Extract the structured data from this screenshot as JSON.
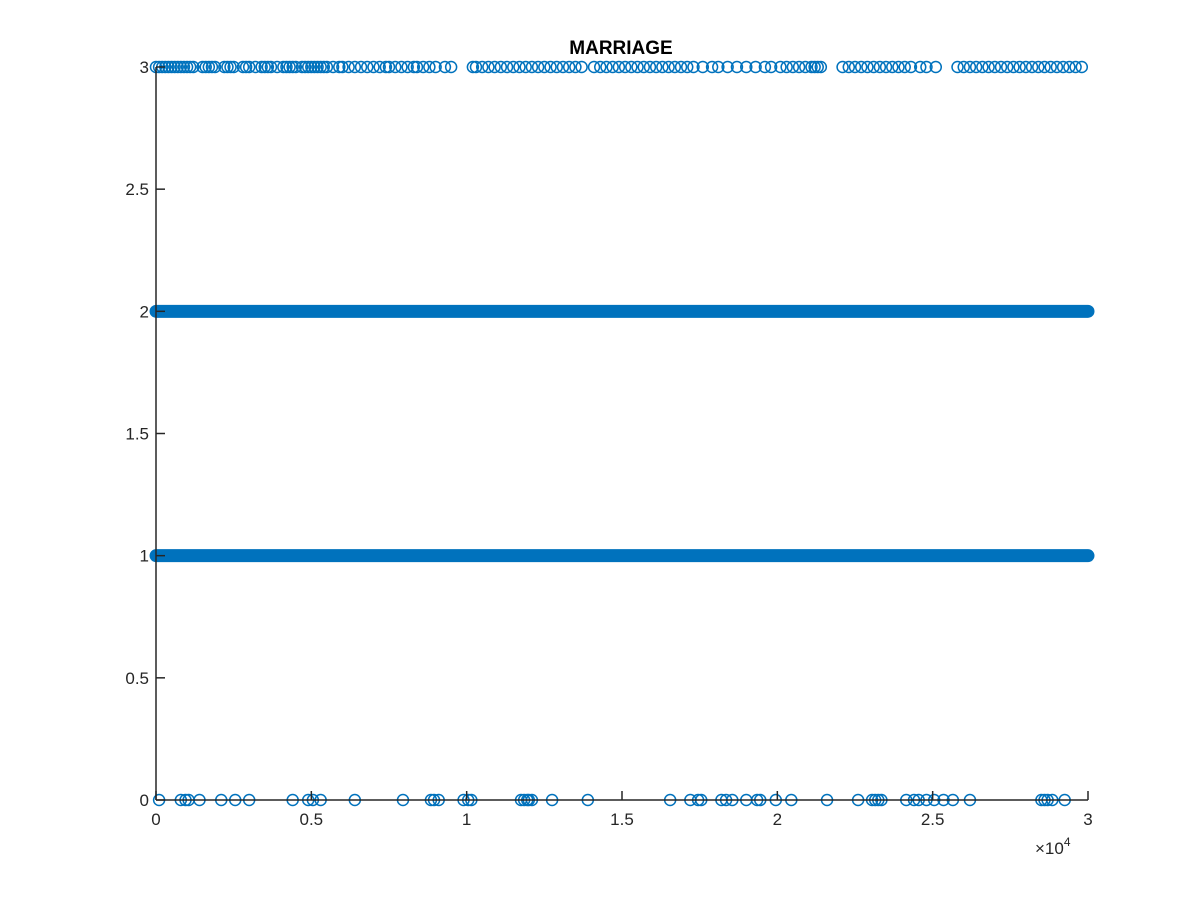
{
  "chart_data": {
    "type": "scatter",
    "title": "MARRIAGE",
    "xlabel": "",
    "ylabel": "",
    "xlim": [
      0,
      30000
    ],
    "ylim": [
      0,
      3
    ],
    "x_tick_labels": [
      "0",
      "0.5",
      "1",
      "1.5",
      "2",
      "2.5",
      "3"
    ],
    "x_tick_values": [
      0,
      5000,
      10000,
      15000,
      20000,
      25000,
      30000
    ],
    "x_exponent_prefix": "×10",
    "x_exponent_power": "4",
    "y_tick_labels": [
      "0",
      "0.5",
      "1",
      "1.5",
      "2",
      "2.5",
      "3"
    ],
    "y_tick_values": [
      0,
      0.5,
      1,
      1.5,
      2,
      2.5,
      3
    ],
    "marker": "open-circle",
    "series_color": "#0072BD",
    "dense_levels": [
      {
        "y": 1,
        "x_range": [
          1,
          30000
        ]
      },
      {
        "y": 2,
        "x_range": [
          1,
          30000
        ]
      }
    ],
    "sparse_points": {
      "y0_x": [
        100,
        800,
        950,
        1050,
        1400,
        2100,
        2550,
        3000,
        4400,
        4900,
        5050,
        5300,
        6400,
        7950,
        8850,
        8950,
        9100,
        9900,
        10050,
        10150,
        11750,
        11850,
        11950,
        12000,
        12100,
        12750,
        13900,
        16550,
        17200,
        17450,
        17550,
        18200,
        18350,
        18550,
        19000,
        19350,
        19450,
        19950,
        20450,
        21600,
        22600,
        23050,
        23150,
        23250,
        23350,
        24150,
        24400,
        24550,
        24800,
        25050,
        25350,
        25650,
        26200,
        28500,
        28600,
        28700,
        28850,
        29250
      ],
      "y3_x": [
        0,
        100,
        200,
        300,
        400,
        500,
        600,
        700,
        800,
        900,
        1000,
        1100,
        1200,
        1500,
        1600,
        1700,
        1800,
        1900,
        2200,
        2300,
        2400,
        2500,
        2800,
        2900,
        3000,
        3200,
        3400,
        3500,
        3600,
        3700,
        3900,
        4100,
        4200,
        4300,
        4400,
        4500,
        4700,
        4800,
        4900,
        5000,
        5100,
        5200,
        5300,
        5400,
        5500,
        5700,
        5900,
        6000,
        6200,
        6400,
        6600,
        6800,
        7000,
        7200,
        7400,
        7500,
        7700,
        7900,
        8100,
        8300,
        8400,
        8600,
        8800,
        9000,
        9300,
        9500,
        10200,
        10300,
        10500,
        10700,
        10900,
        11100,
        11300,
        11500,
        11700,
        11900,
        12100,
        12300,
        12500,
        12700,
        12900,
        13100,
        13300,
        13500,
        13700,
        14100,
        14300,
        14500,
        14700,
        14900,
        15100,
        15300,
        15500,
        15700,
        15900,
        16100,
        16300,
        16500,
        16700,
        16900,
        17100,
        17300,
        17600,
        17900,
        18100,
        18400,
        18700,
        19000,
        19300,
        19600,
        19800,
        20100,
        20300,
        20500,
        20700,
        20900,
        21100,
        21200,
        21300,
        21400,
        22100,
        22300,
        22500,
        22700,
        22900,
        23100,
        23300,
        23500,
        23700,
        23900,
        24100,
        24300,
        24600,
        24800,
        25100,
        25800,
        26000,
        26200,
        26400,
        26600,
        26800,
        27000,
        27200,
        27400,
        27600,
        27800,
        28000,
        28200,
        28400,
        28600,
        28800,
        29000,
        29200,
        29400,
        29600,
        29800
      ]
    }
  }
}
